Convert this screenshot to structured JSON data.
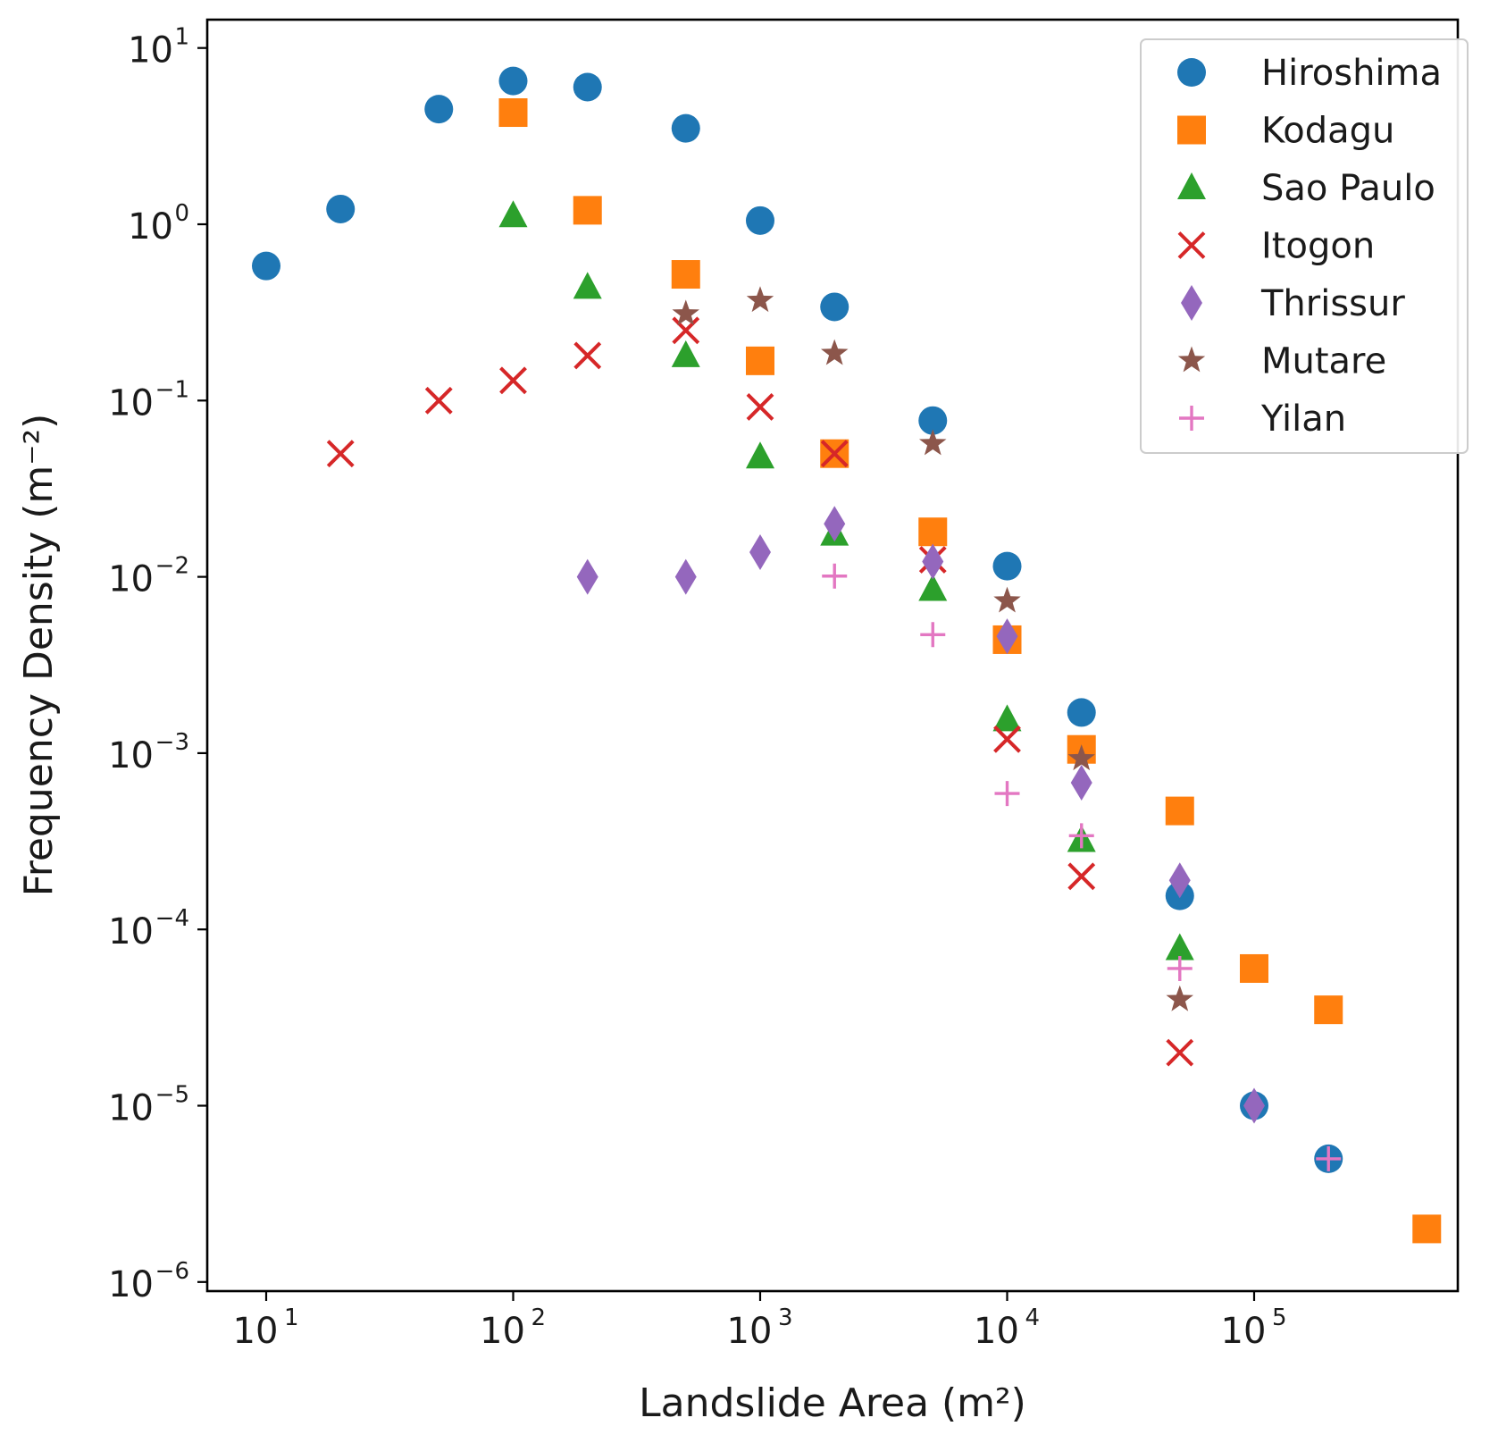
{
  "chart_data": {
    "type": "scatter",
    "title": "",
    "xlabel": "Landslide Area (m²)",
    "ylabel": "Frequency Density (m⁻²)",
    "xscale": "log",
    "yscale": "log",
    "xlim": [
      6,
      800000
    ],
    "ylim": [
      8.5e-07,
      18
    ],
    "grid": false,
    "legend_position": "top-right",
    "xticks": [
      {
        "value": 10,
        "base": "10",
        "exp": "1"
      },
      {
        "value": 100,
        "base": "10",
        "exp": "2"
      },
      {
        "value": 1000,
        "base": "10",
        "exp": "3"
      },
      {
        "value": 10000,
        "base": "10",
        "exp": "4"
      },
      {
        "value": 100000,
        "base": "10",
        "exp": "5"
      }
    ],
    "yticks": [
      {
        "value": 10,
        "base": "10",
        "exp": "1"
      },
      {
        "value": 1,
        "base": "10",
        "exp": "0"
      },
      {
        "value": 0.1,
        "base": "10",
        "exp": "−1"
      },
      {
        "value": 0.01,
        "base": "10",
        "exp": "−2"
      },
      {
        "value": 0.001,
        "base": "10",
        "exp": "−3"
      },
      {
        "value": 0.0001,
        "base": "10",
        "exp": "−4"
      },
      {
        "value": 1e-05,
        "base": "10",
        "exp": "−5"
      },
      {
        "value": 1e-06,
        "base": "10",
        "exp": "−6"
      }
    ],
    "series": [
      {
        "name": "Hiroshima",
        "marker": "circle",
        "color": "#1f77b4",
        "points": [
          [
            10,
            0.58
          ],
          [
            20,
            1.22
          ],
          [
            50,
            4.5
          ],
          [
            100,
            6.5
          ],
          [
            200,
            6.0
          ],
          [
            500,
            3.5
          ],
          [
            1000,
            1.05
          ],
          [
            2000,
            0.34
          ],
          [
            5000,
            0.077
          ],
          [
            10000,
            0.0115
          ],
          [
            20000,
            0.0017
          ],
          [
            50000,
            0.000155
          ],
          [
            100000,
            1e-05
          ],
          [
            200000,
            5e-06
          ]
        ]
      },
      {
        "name": "Kodagu",
        "marker": "square",
        "color": "#ff7f0e",
        "points": [
          [
            100,
            4.3
          ],
          [
            200,
            1.2
          ],
          [
            500,
            0.52
          ],
          [
            1000,
            0.168
          ],
          [
            2000,
            0.05
          ],
          [
            5000,
            0.018
          ],
          [
            10000,
            0.0044
          ],
          [
            20000,
            0.00105
          ],
          [
            50000,
            0.00047
          ],
          [
            100000,
            6e-05
          ],
          [
            200000,
            3.5e-05
          ],
          [
            500000,
            2e-06
          ]
        ]
      },
      {
        "name": "Sao Paulo",
        "marker": "triangle",
        "color": "#2ca02c",
        "points": [
          [
            100,
            1.12
          ],
          [
            200,
            0.44
          ],
          [
            500,
            0.18
          ],
          [
            1000,
            0.048
          ],
          [
            2000,
            0.0175
          ],
          [
            5000,
            0.0085
          ],
          [
            10000,
            0.00155
          ],
          [
            20000,
            0.00032
          ],
          [
            50000,
            7.8e-05
          ]
        ]
      },
      {
        "name": "Itogon",
        "marker": "x",
        "color": "#d62728",
        "points": [
          [
            20,
            0.05
          ],
          [
            50,
            0.1
          ],
          [
            100,
            0.13
          ],
          [
            200,
            0.18
          ],
          [
            500,
            0.25
          ],
          [
            1000,
            0.092
          ],
          [
            2000,
            0.05
          ],
          [
            5000,
            0.0125
          ],
          [
            10000,
            0.0012
          ],
          [
            20000,
            0.0002
          ],
          [
            50000,
            2e-05
          ]
        ]
      },
      {
        "name": "Thrissur",
        "marker": "diamond",
        "color": "#9467bd",
        "points": [
          [
            200,
            0.01
          ],
          [
            500,
            0.01
          ],
          [
            1000,
            0.0138
          ],
          [
            2000,
            0.02
          ],
          [
            5000,
            0.0122
          ],
          [
            10000,
            0.0046
          ],
          [
            20000,
            0.00068
          ],
          [
            50000,
            0.00019
          ],
          [
            100000,
            1e-05
          ]
        ]
      },
      {
        "name": "Mutare",
        "marker": "star",
        "color": "#8c564b",
        "points": [
          [
            500,
            0.31
          ],
          [
            1000,
            0.37
          ],
          [
            2000,
            0.185
          ],
          [
            5000,
            0.057
          ],
          [
            10000,
            0.0073
          ],
          [
            20000,
            0.00093
          ],
          [
            50000,
            4e-05
          ]
        ]
      },
      {
        "name": "Yilan",
        "marker": "plus",
        "color": "#e377c2",
        "points": [
          [
            2000,
            0.0101
          ],
          [
            5000,
            0.0047
          ],
          [
            10000,
            0.00059
          ],
          [
            20000,
            0.00034
          ],
          [
            50000,
            6e-05
          ],
          [
            200000,
            5e-06
          ]
        ]
      }
    ]
  }
}
